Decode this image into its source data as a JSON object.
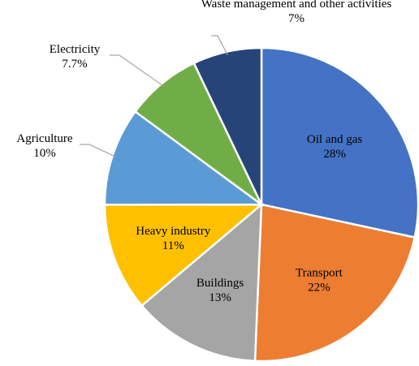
{
  "chart_data": {
    "type": "pie",
    "categories": [
      "Oil and gas",
      "Transport",
      "Buildings",
      "Heavy industry",
      "Agriculture",
      "Electricity",
      "Waste management and other activities"
    ],
    "values": [
      28,
      22,
      13,
      11,
      10,
      7.7,
      7
    ],
    "value_labels": [
      "28%",
      "22%",
      "13%",
      "11%",
      "10%",
      "7.7%",
      "7%"
    ],
    "colors": [
      "#4472c4",
      "#ed7d31",
      "#a5a5a5",
      "#ffc000",
      "#5b9bd5",
      "#70ad47",
      "#264478"
    ]
  }
}
